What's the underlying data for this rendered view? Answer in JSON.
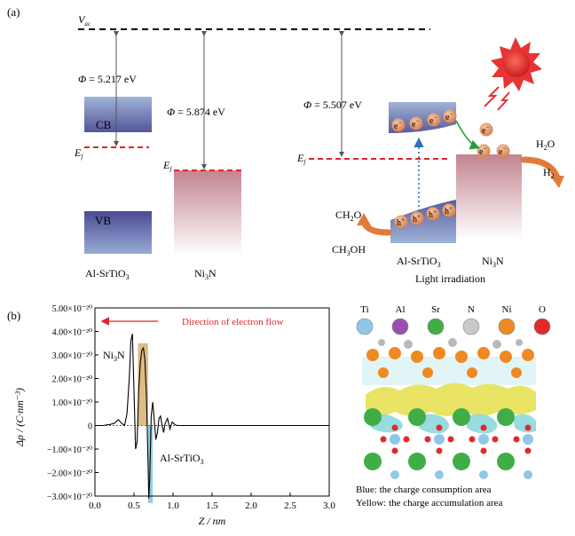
{
  "panel_a": {
    "label": "(a)",
    "vac_label": "V",
    "vac_sub": "ac",
    "phi_symbol": "Φ",
    "phi1": " = 5.217 eV",
    "phi2": " = 5.874 eV",
    "phi3": " = 5.507 eV",
    "cb": "CB",
    "vb": "VB",
    "ef": "E",
    "ef_sub": "f",
    "srtio_label": "Al-SrTiO",
    "srtio_sub": "3",
    "ni3n_pre": "Ni",
    "ni3n_sub": "3",
    "ni3n_post": "N",
    "electron": "e",
    "hole": "h",
    "plus": "+",
    "minus": "−",
    "h2o": "H",
    "h2o_sub": "2",
    "h2o_post": "O",
    "h2": "H",
    "h2_sub": "2",
    "ch2o": "CH",
    "ch2o_sub": "2",
    "ch2o_post": "O",
    "ch3oh": "CH",
    "ch3oh_sub": "3",
    "ch3oh_post": "OH",
    "light": "Light irradiation",
    "colors": {
      "ef_line": "#e0242a",
      "cb_band": "#8ca2cf",
      "vb_band": "#5a5a9c",
      "ni3n": "#c98a96",
      "electron": "#e39a6b",
      "sun": "#e83434",
      "arrow": "#e07b39",
      "green": "#2a9c3c",
      "blue_dotted": "#2f6fb8"
    }
  },
  "panel_b": {
    "label": "(b)",
    "arrow_text": "Direction of electron flow",
    "ni3n_pre": "Ni",
    "ni3n_sub": "3",
    "ni3n_post": "N",
    "srtio_label": "Al-SrTiO",
    "srtio_sub": "3",
    "legend_text_1": "Blue: the charge consumption area",
    "legend_text_2": "Yellow: the charge accumulation area",
    "atoms": [
      {
        "symbol": "Ti",
        "color": "#8fc7e8"
      },
      {
        "symbol": "Al",
        "color": "#9a4fb0"
      },
      {
        "symbol": "Sr",
        "color": "#3fae46"
      },
      {
        "symbol": "N",
        "color": "#c8c8c8"
      },
      {
        "symbol": "Ni",
        "color": "#ef8a22"
      },
      {
        "symbol": "O",
        "color": "#e12b2b"
      }
    ]
  },
  "chart_data": {
    "type": "line",
    "xlabel": "Z / nm",
    "ylabel": "Δρ / (C·nm⁻³)",
    "xlim": [
      0.0,
      3.0
    ],
    "ylim": [
      -3e-20,
      5e-20
    ],
    "xticks": [
      "0.0",
      "0.5",
      "1.0",
      "1.5",
      "2.0",
      "2.5",
      "3.0"
    ],
    "yticks": [
      {
        "value": 5e-20,
        "label": "5.00×10⁻²⁰"
      },
      {
        "value": 4e-20,
        "label": "4.00×10⁻²⁰"
      },
      {
        "value": 3e-20,
        "label": "3.00×10⁻²⁰"
      },
      {
        "value": 2e-20,
        "label": "2.00×10⁻²⁰"
      },
      {
        "value": 1e-20,
        "label": "1.00×10⁻²⁰"
      },
      {
        "value": 0,
        "label": "0"
      },
      {
        "value": -1e-20,
        "label": "−1.00×10⁻²⁰"
      },
      {
        "value": -2e-20,
        "label": "−2.00×10⁻²⁰"
      },
      {
        "value": -3e-20,
        "label": "−3.00×10⁻²⁰"
      }
    ],
    "series": [
      {
        "x": [
          0.0,
          0.1,
          0.2,
          0.25,
          0.3,
          0.34,
          0.38,
          0.41,
          0.44,
          0.46,
          0.48,
          0.5,
          0.52,
          0.54,
          0.56,
          0.58,
          0.6,
          0.62,
          0.64,
          0.66,
          0.68,
          0.69,
          0.7,
          0.72,
          0.74,
          0.76,
          0.78,
          0.8,
          0.82,
          0.84,
          0.86,
          0.88,
          0.9,
          0.93,
          0.96,
          0.99,
          1.02,
          1.05,
          1.1,
          1.2,
          1.5,
          2.0,
          2.5,
          3.0
        ],
        "y": [
          0,
          0,
          5e-22,
          1e-21,
          2.5e-21,
          1e-21,
          0.0,
          5e-21,
          2e-20,
          3.6e-20,
          3.9e-20,
          1.5e-20,
          -1e-20,
          -7e-21,
          1.5e-20,
          2.6e-20,
          3.2e-20,
          3.3e-20,
          2.8e-20,
          1.2e-20,
          -1.5e-20,
          -3.1e-20,
          -2.4e-20,
          4e-21,
          1e-20,
          2e-21,
          -6e-21,
          -3e-21,
          3e-21,
          4e-21,
          0.0,
          -3e-21,
          1e-21,
          3e-21,
          -1.5e-21,
          1.5e-21,
          5e-22,
          0,
          0,
          0,
          0,
          0,
          0,
          0
        ]
      }
    ],
    "highlights": [
      {
        "x0": 0.55,
        "x1": 0.68,
        "y0": 0,
        "y1": 3.5e-20,
        "color": "#d9b070"
      },
      {
        "x0": 0.68,
        "x1": 0.74,
        "y0": -3.3e-20,
        "y1": 0,
        "color": "#7fc6d8"
      }
    ],
    "arrow": {
      "x_from": 1.15,
      "x_to": 0.1,
      "y": 4.5e-20
    }
  }
}
